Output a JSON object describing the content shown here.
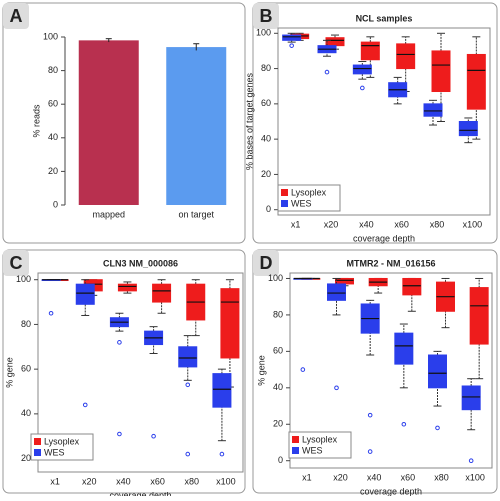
{
  "chart_data": [
    {
      "type": "bar",
      "label": "A",
      "ylabel": "% reads",
      "categories": [
        "mapped",
        "on target"
      ],
      "values": [
        98,
        94
      ],
      "errors": [
        1,
        2
      ],
      "colors": [
        "#b8304f",
        "#5b9bef"
      ],
      "ylim": [
        0,
        100
      ],
      "yticks": [
        0,
        20,
        40,
        60,
        80,
        100
      ]
    },
    {
      "type": "box",
      "label": "B",
      "title": "NCL samples",
      "ylabel": "% bases of target genes",
      "xlabel": "coverage depth",
      "categories": [
        "x1",
        "x20",
        "x40",
        "x60",
        "x80",
        "x100"
      ],
      "ylim": [
        -3,
        103
      ],
      "yticks": [
        0,
        20,
        40,
        60,
        80,
        100
      ],
      "series": [
        {
          "name": "Lysoplex",
          "color": "#ee1c1c",
          "q1": [
            97,
            93,
            85,
            80,
            67,
            57
          ],
          "median": [
            98.5,
            96,
            93,
            88,
            82,
            79
          ],
          "q3": [
            99.5,
            97.5,
            95,
            94,
            90,
            88
          ],
          "whisker_low": [
            96,
            91,
            75,
            67,
            50,
            40
          ],
          "whisker_high": [
            100,
            99,
            98,
            98,
            100,
            98
          ],
          "outliers": [
            [],
            [],
            [],
            [],
            [],
            []
          ]
        },
        {
          "name": "WES",
          "color": "#2a3eeb",
          "q1": [
            96,
            89,
            77,
            64,
            53,
            42
          ],
          "median": [
            98,
            91,
            80,
            68,
            56,
            45
          ],
          "q3": [
            99,
            93,
            82,
            72,
            60,
            50
          ],
          "whisker_low": [
            95,
            87,
            74,
            60,
            48,
            38
          ],
          "whisker_high": [
            100,
            96,
            84,
            75,
            62,
            52
          ],
          "outliers": [
            [
              93
            ],
            [
              78
            ],
            [
              69
            ],
            [],
            [],
            []
          ]
        }
      ]
    },
    {
      "type": "box",
      "label": "C",
      "title": "CLN3 NM_000086",
      "ylabel": "% gene",
      "xlabel": "coverage depth",
      "categories": [
        "x1",
        "x20",
        "x40",
        "x60",
        "x80",
        "x100"
      ],
      "ylim": [
        14,
        103
      ],
      "yticks": [
        20,
        40,
        60,
        80,
        100
      ],
      "series": [
        {
          "name": "Lysoplex",
          "color": "#ee1c1c",
          "q1": [
            100,
            95,
            95,
            90,
            82,
            65
          ],
          "median": [
            100,
            98,
            97,
            95,
            90,
            90
          ],
          "q3": [
            100,
            100,
            98,
            98,
            98,
            96
          ],
          "whisker_low": [
            100,
            93,
            94,
            85,
            75,
            52
          ],
          "whisker_high": [
            100,
            100,
            99,
            100,
            100,
            100
          ],
          "outliers": [
            [],
            [],
            [],
            [],
            [],
            []
          ]
        },
        {
          "name": "WES",
          "color": "#2a3eeb",
          "q1": [
            100,
            89,
            79,
            71,
            61,
            43
          ],
          "median": [
            100,
            94,
            81,
            74,
            65,
            51
          ],
          "q3": [
            100,
            98,
            83,
            77,
            70,
            58
          ],
          "whisker_low": [
            100,
            84,
            77,
            67,
            55,
            28
          ],
          "whisker_high": [
            100,
            100,
            85,
            79,
            75,
            60
          ],
          "outliers": [
            [
              85
            ],
            [
              44
            ],
            [
              72,
              31
            ],
            [
              30
            ],
            [
              53,
              22
            ],
            [
              22
            ]
          ]
        }
      ]
    },
    {
      "type": "box",
      "label": "D",
      "title": "MTMR2 - NM_016156",
      "ylabel": "% gene",
      "xlabel": "coverage depth",
      "categories": [
        "x1",
        "x20",
        "x40",
        "x60",
        "x80",
        "x100"
      ],
      "ylim": [
        -4,
        103
      ],
      "yticks": [
        0,
        20,
        40,
        60,
        80,
        100
      ],
      "series": [
        {
          "name": "Lysoplex",
          "color": "#ee1c1c",
          "q1": [
            100,
            97,
            96,
            91,
            82,
            64
          ],
          "median": [
            100,
            99,
            98,
            96,
            90,
            85
          ],
          "q3": [
            100,
            100,
            100,
            100,
            98,
            95
          ],
          "whisker_low": [
            100,
            96,
            92,
            82,
            73,
            45
          ],
          "whisker_high": [
            100,
            100,
            100,
            100,
            100,
            100
          ],
          "outliers": [
            [],
            [],
            [],
            [],
            [],
            []
          ]
        },
        {
          "name": "WES",
          "color": "#2a3eeb",
          "q1": [
            100,
            88,
            70,
            53,
            40,
            28
          ],
          "median": [
            100,
            92,
            78,
            63,
            48,
            35
          ],
          "q3": [
            100,
            97,
            86,
            70,
            58,
            41
          ],
          "whisker_low": [
            100,
            80,
            58,
            40,
            30,
            17
          ],
          "whisker_high": [
            100,
            100,
            88,
            75,
            60,
            45
          ],
          "outliers": [
            [
              50
            ],
            [
              40,
              12
            ],
            [
              25,
              5
            ],
            [
              20
            ],
            [
              18
            ],
            [
              0
            ]
          ]
        }
      ]
    }
  ]
}
